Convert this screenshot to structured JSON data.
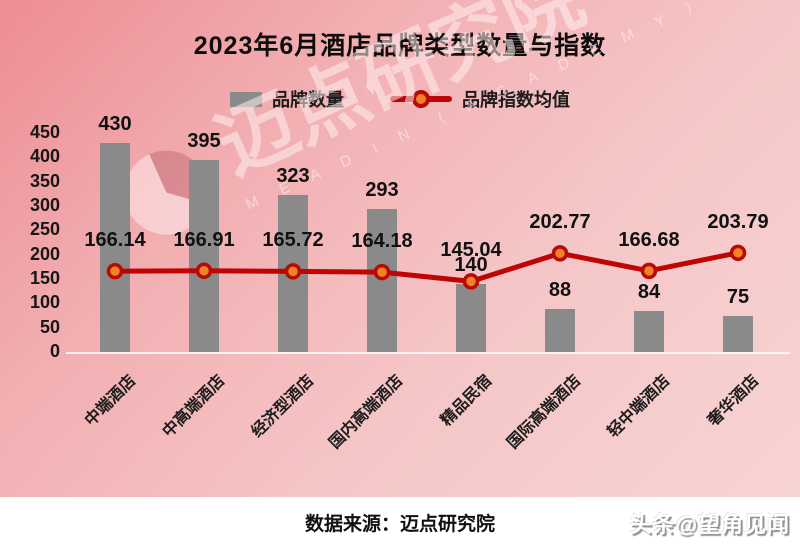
{
  "title": "2023年6月酒店品牌类型数量与指数",
  "legend": {
    "bars": "品牌数量",
    "line": "品牌指数均值"
  },
  "watermark": {
    "text": "迈点研究院",
    "subtext": "M E A D I N （ A C A D E M Y ）"
  },
  "footer": {
    "source": "数据来源：迈点研究院",
    "account": "头条@望角见闻"
  },
  "colors": {
    "bar": "#8a8a8a",
    "line": "#c00404",
    "marker_fill": "#f08228",
    "marker_stroke": "#b80b06",
    "background_from": "#ed8d94",
    "background_to": "#f7d5d3"
  },
  "chart_data": {
    "type": "bar",
    "title": "2023年6月酒店品牌类型数量与指数",
    "categories": [
      "中端酒店",
      "中高端酒店",
      "经济型酒店",
      "国内高端酒店",
      "精品民宿",
      "国际高端酒店",
      "轻中端酒店",
      "奢华酒店"
    ],
    "series": [
      {
        "name": "品牌数量",
        "type": "bar",
        "values": [
          430,
          395,
          323,
          293,
          140,
          88,
          84,
          75
        ]
      },
      {
        "name": "品牌指数均值",
        "type": "line",
        "values": [
          166.14,
          166.91,
          165.72,
          164.18,
          145.04,
          202.77,
          166.68,
          203.79
        ]
      }
    ],
    "xlabel": "",
    "ylabel": "",
    "ylim": [
      0,
      450
    ],
    "yticks": [
      450,
      400,
      350,
      300,
      250,
      200,
      150,
      100,
      50,
      0
    ],
    "grid": false,
    "legend_position": "top"
  }
}
